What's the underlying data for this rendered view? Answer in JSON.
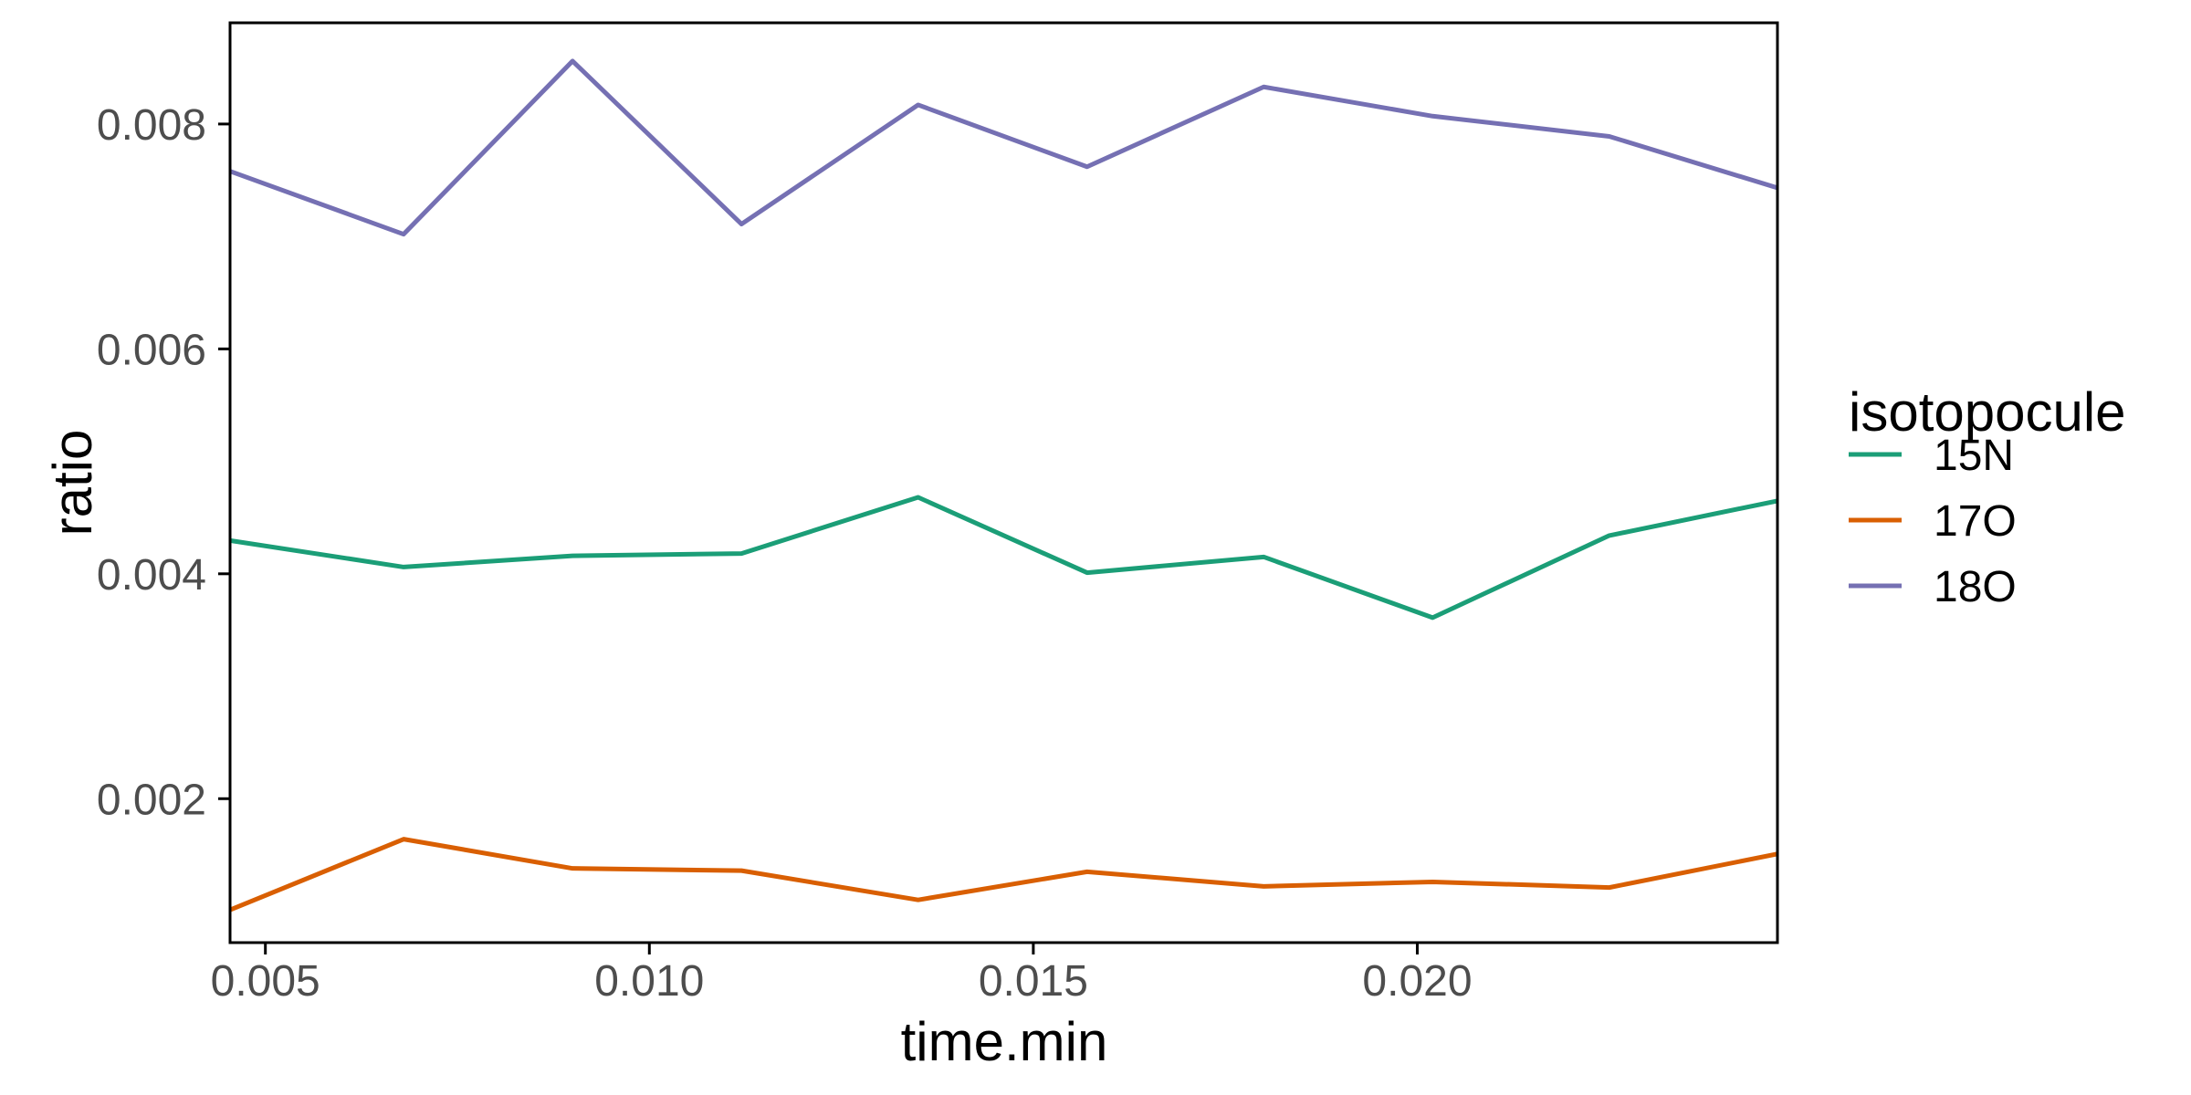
{
  "chart_data": {
    "type": "line",
    "title": "",
    "xlabel": "time.min",
    "ylabel": "ratio",
    "legend_title": "isotopocule",
    "legend_position": "right",
    "grid": false,
    "background": "#FFFFFF",
    "x": [
      0.0045,
      0.0068,
      0.009,
      0.0112,
      0.0135,
      0.0157,
      0.018,
      0.0202,
      0.0225,
      0.0247
    ],
    "series": [
      {
        "name": "15N",
        "color": "#1B9E77",
        "values": [
          0.0043,
          0.00406,
          0.00416,
          0.00418,
          0.00468,
          0.00401,
          0.00415,
          0.00361,
          0.00434,
          0.00465
        ]
      },
      {
        "name": "17O",
        "color": "#D95F02",
        "values": [
          0.001,
          0.00164,
          0.00138,
          0.00136,
          0.0011,
          0.00135,
          0.00122,
          0.00126,
          0.00121,
          0.00151
        ]
      },
      {
        "name": "18O",
        "color": "#7570B3",
        "values": [
          0.00759,
          0.00702,
          0.00856,
          0.00711,
          0.00817,
          0.00762,
          0.00833,
          0.00807,
          0.00789,
          0.00743
        ]
      }
    ],
    "x_ticks": {
      "values": [
        0.005,
        0.01,
        0.015,
        0.02
      ],
      "labels": [
        "0.005",
        "0.010",
        "0.015",
        "0.020"
      ]
    },
    "y_ticks": {
      "values": [
        0.002,
        0.004,
        0.006,
        0.008
      ],
      "labels": [
        "0.002",
        "0.004",
        "0.006",
        "0.008"
      ]
    },
    "xlim": [
      0.00454,
      0.02469
    ],
    "ylim": [
      0.00072,
      0.0089
    ]
  },
  "style": {
    "axis_line_color": "#000000",
    "tick_label_color": "#4D4D4D",
    "title_color": "#000000",
    "legend_text_color": "#000000"
  }
}
